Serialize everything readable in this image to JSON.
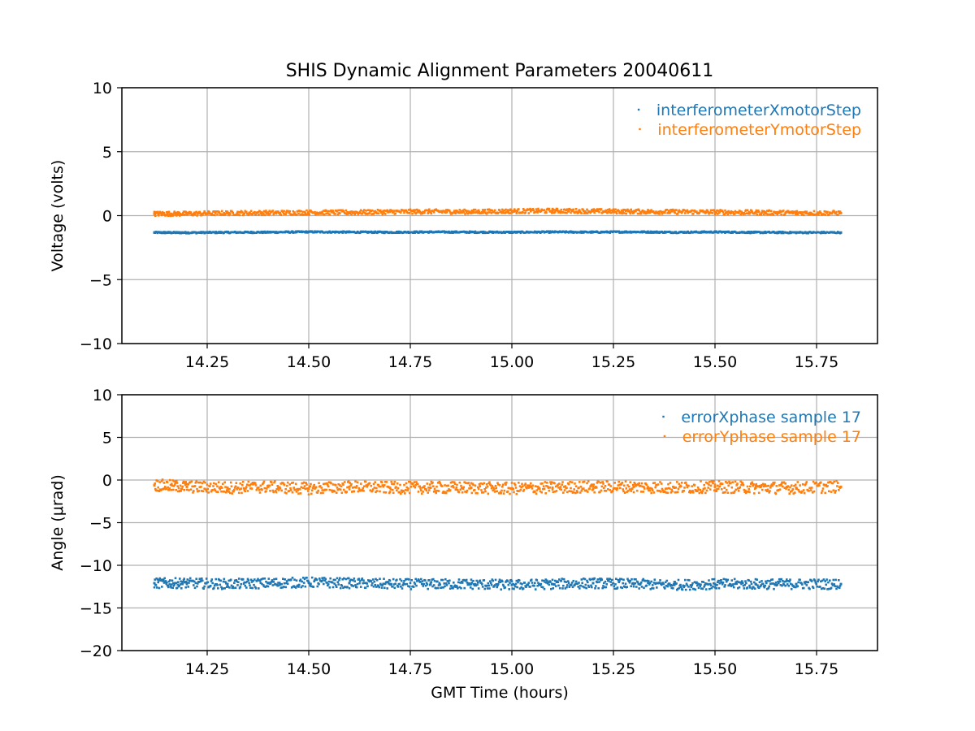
{
  "figure": {
    "title": "SHIS Dynamic Alignment Parameters 20040611"
  },
  "chart_data": [
    {
      "type": "scatter",
      "title": "SHIS Dynamic Alignment Parameters 20040611",
      "xlabel": "",
      "ylabel": "Voltage (volts)",
      "xlim": [
        14.04,
        15.9
      ],
      "ylim": [
        -10,
        10
      ],
      "xticks": [
        14.25,
        14.5,
        14.75,
        15.0,
        15.25,
        15.5,
        15.75
      ],
      "xtick_labels": [
        "14.25",
        "14.50",
        "14.75",
        "15.00",
        "15.25",
        "15.50",
        "15.75"
      ],
      "yticks": [
        -10,
        -5,
        0,
        5,
        10
      ],
      "ytick_labels": [
        "−10",
        "−5",
        "0",
        "5",
        "10"
      ],
      "grid": true,
      "legend_position": "top-right",
      "series": [
        {
          "name": "interferometerXmotorStep",
          "color": "#1f77b4",
          "x": [
            14.12,
            14.2,
            14.3,
            14.4,
            14.5,
            14.6,
            14.7,
            14.8,
            14.9,
            15.0,
            15.1,
            15.2,
            15.3,
            15.4,
            15.5,
            15.6,
            15.7,
            15.81
          ],
          "y": [
            -1.32,
            -1.33,
            -1.31,
            -1.3,
            -1.27,
            -1.29,
            -1.3,
            -1.28,
            -1.29,
            -1.3,
            -1.28,
            -1.29,
            -1.27,
            -1.3,
            -1.28,
            -1.31,
            -1.32,
            -1.32
          ],
          "spread": 0.12
        },
        {
          "name": "interferometerYmotorStep",
          "color": "#ff7f0e",
          "x": [
            14.12,
            14.2,
            14.3,
            14.4,
            14.5,
            14.6,
            14.7,
            14.8,
            14.9,
            15.0,
            15.1,
            15.2,
            15.3,
            15.4,
            15.5,
            15.6,
            15.7,
            15.81
          ],
          "y": [
            0.15,
            0.15,
            0.2,
            0.22,
            0.25,
            0.25,
            0.3,
            0.32,
            0.3,
            0.35,
            0.38,
            0.35,
            0.32,
            0.3,
            0.28,
            0.25,
            0.22,
            0.2
          ],
          "spread": 0.35
        }
      ]
    },
    {
      "type": "scatter",
      "title": "",
      "xlabel": "GMT Time (hours)",
      "ylabel": "Angle (μrad)",
      "xlim": [
        14.04,
        15.9
      ],
      "ylim": [
        -20,
        10
      ],
      "xticks": [
        14.25,
        14.5,
        14.75,
        15.0,
        15.25,
        15.5,
        15.75
      ],
      "xtick_labels": [
        "14.25",
        "14.50",
        "14.75",
        "15.00",
        "15.25",
        "15.50",
        "15.75"
      ],
      "yticks": [
        -20,
        -15,
        -10,
        -5,
        0,
        5,
        10
      ],
      "ytick_labels": [
        "−20",
        "−15",
        "−10",
        "−5",
        "0",
        "5",
        "10"
      ],
      "grid": true,
      "legend_position": "top-right",
      "series": [
        {
          "name": "errorXphase sample 17",
          "color": "#1f77b4",
          "x": [
            14.12,
            14.2,
            14.3,
            14.4,
            14.5,
            14.6,
            14.7,
            14.8,
            14.9,
            15.0,
            15.1,
            15.2,
            15.3,
            15.4,
            15.5,
            15.6,
            15.7,
            15.81
          ],
          "y": [
            -12.1,
            -12.1,
            -12.2,
            -12.1,
            -12.0,
            -12.1,
            -12.2,
            -12.2,
            -12.2,
            -12.3,
            -12.2,
            -12.1,
            -12.2,
            -12.3,
            -12.2,
            -12.2,
            -12.2,
            -12.2
          ],
          "spread": 1.2
        },
        {
          "name": "errorYphase sample 17",
          "color": "#ff7f0e",
          "x": [
            14.12,
            14.2,
            14.3,
            14.4,
            14.5,
            14.6,
            14.7,
            14.8,
            14.9,
            15.0,
            15.1,
            15.2,
            15.3,
            15.4,
            15.5,
            15.6,
            15.7,
            15.81
          ],
          "y": [
            -0.6,
            -0.8,
            -0.9,
            -0.8,
            -1.0,
            -0.8,
            -0.9,
            -0.9,
            -0.9,
            -1.0,
            -0.9,
            -0.8,
            -0.8,
            -0.9,
            -0.8,
            -0.9,
            -0.9,
            -0.8
          ],
          "spread": 1.4
        }
      ]
    }
  ]
}
